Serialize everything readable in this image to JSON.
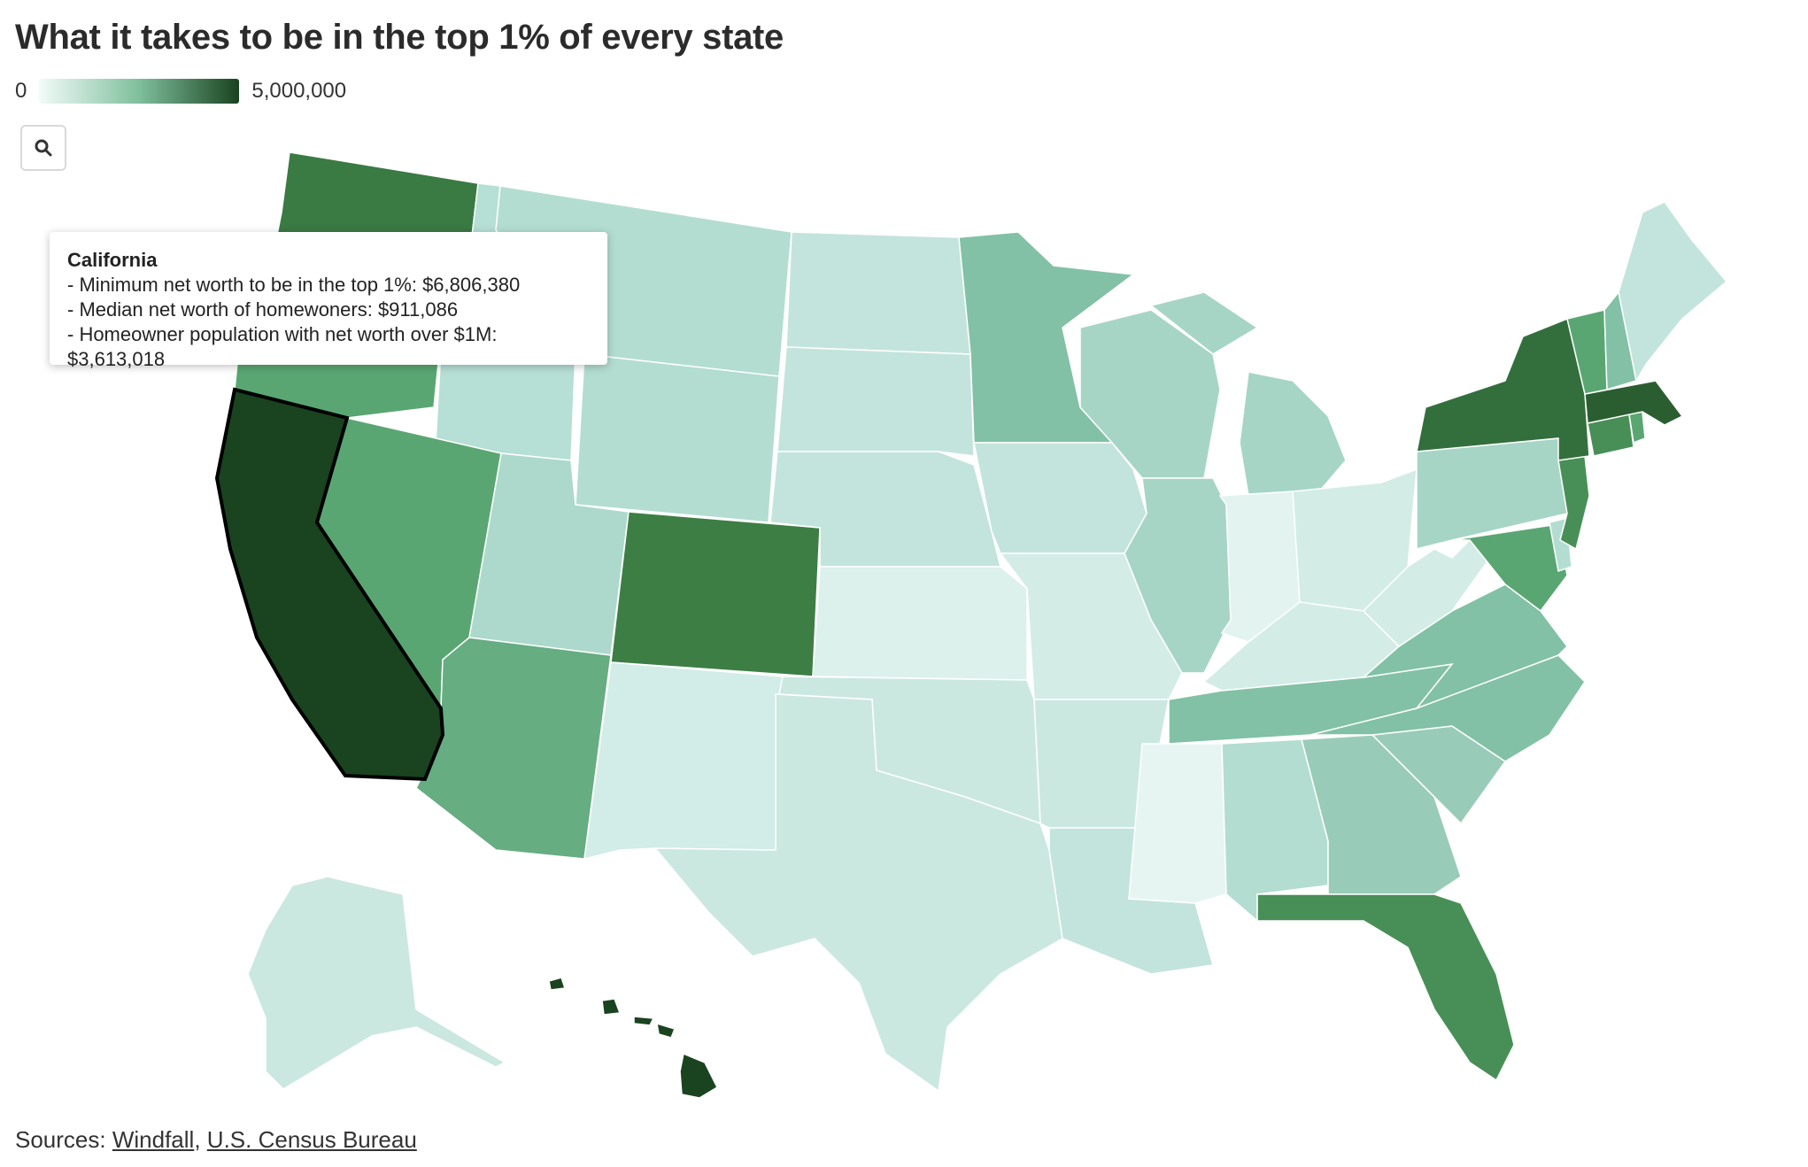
{
  "title": "What it takes to be in the top 1% of every state",
  "legend": {
    "min_label": "0",
    "max_label": "5,000,000",
    "color_low": "#f2fbf9",
    "color_mid": "#7fbf9c",
    "color_high": "#1a4320"
  },
  "search": {
    "icon": "search-icon"
  },
  "tooltip": {
    "state": "California",
    "line1": "- Minimum net worth to be in the top 1%: $6,806,380",
    "line2": "- Median net worth of homewoners: $911,086",
    "line3": "- Homeowner population with net worth over $1M: $3,613,018"
  },
  "sources": {
    "label": "Sources:",
    "separator": ",",
    "links": [
      "Windfall",
      "U.S. Census Bureau"
    ]
  },
  "map": {
    "selected_state": "California",
    "states": [
      {
        "name": "Washington",
        "color": "#3a7a43"
      },
      {
        "name": "Oregon",
        "color": "#5aa673"
      },
      {
        "name": "California",
        "color": "#1a4320"
      },
      {
        "name": "Idaho",
        "color": "#b6dfd5"
      },
      {
        "name": "Nevada",
        "color": "#5aa673"
      },
      {
        "name": "Montana",
        "color": "#b3ddd1"
      },
      {
        "name": "Wyoming",
        "color": "#b3ddd1"
      },
      {
        "name": "Utah",
        "color": "#acd9cb"
      },
      {
        "name": "Arizona",
        "color": "#66ad82"
      },
      {
        "name": "Colorado",
        "color": "#3d7e45"
      },
      {
        "name": "New Mexico",
        "color": "#d2ece7"
      },
      {
        "name": "North Dakota",
        "color": "#c3e4dc"
      },
      {
        "name": "South Dakota",
        "color": "#c3e4dc"
      },
      {
        "name": "Nebraska",
        "color": "#c3e4dc"
      },
      {
        "name": "Kansas",
        "color": "#dcf0ec"
      },
      {
        "name": "Oklahoma",
        "color": "#cbe8e0"
      },
      {
        "name": "Texas",
        "color": "#cbe8e0"
      },
      {
        "name": "Minnesota",
        "color": "#82c1a5"
      },
      {
        "name": "Iowa",
        "color": "#c3e4dc"
      },
      {
        "name": "Missouri",
        "color": "#d3ece6"
      },
      {
        "name": "Arkansas",
        "color": "#cbe8e0"
      },
      {
        "name": "Louisiana",
        "color": "#c3e4dc"
      },
      {
        "name": "Wisconsin",
        "color": "#a6d5c6"
      },
      {
        "name": "Illinois",
        "color": "#a6d5c6"
      },
      {
        "name": "Michigan",
        "color": "#a6d5c6"
      },
      {
        "name": "Indiana",
        "color": "#e2f3f0"
      },
      {
        "name": "Ohio",
        "color": "#d3ece6"
      },
      {
        "name": "Kentucky",
        "color": "#d3ece6"
      },
      {
        "name": "Tennessee",
        "color": "#82c1a5"
      },
      {
        "name": "Mississippi",
        "color": "#e6f5f2"
      },
      {
        "name": "Alabama",
        "color": "#b3ddd1"
      },
      {
        "name": "Georgia",
        "color": "#99ccb8"
      },
      {
        "name": "Florida",
        "color": "#488f57"
      },
      {
        "name": "South Carolina",
        "color": "#99ccb8"
      },
      {
        "name": "North Carolina",
        "color": "#82c1a5"
      },
      {
        "name": "Virginia",
        "color": "#82c1a5"
      },
      {
        "name": "West Virginia",
        "color": "#d3ece6"
      },
      {
        "name": "Pennsylvania",
        "color": "#a6d5c6"
      },
      {
        "name": "Maryland",
        "color": "#5aa673"
      },
      {
        "name": "Delaware",
        "color": "#b3ddd1"
      },
      {
        "name": "New Jersey",
        "color": "#488f57"
      },
      {
        "name": "New York",
        "color": "#336f3c"
      },
      {
        "name": "Connecticut",
        "color": "#488f57"
      },
      {
        "name": "Rhode Island",
        "color": "#5aa673"
      },
      {
        "name": "Massachusetts",
        "color": "#2a5e30"
      },
      {
        "name": "Vermont",
        "color": "#5aa673"
      },
      {
        "name": "New Hampshire",
        "color": "#82c1a5"
      },
      {
        "name": "Maine",
        "color": "#c3e4dc"
      },
      {
        "name": "Alaska",
        "color": "#cbe8e0"
      },
      {
        "name": "Hawaii",
        "color": "#1a4320"
      }
    ]
  }
}
